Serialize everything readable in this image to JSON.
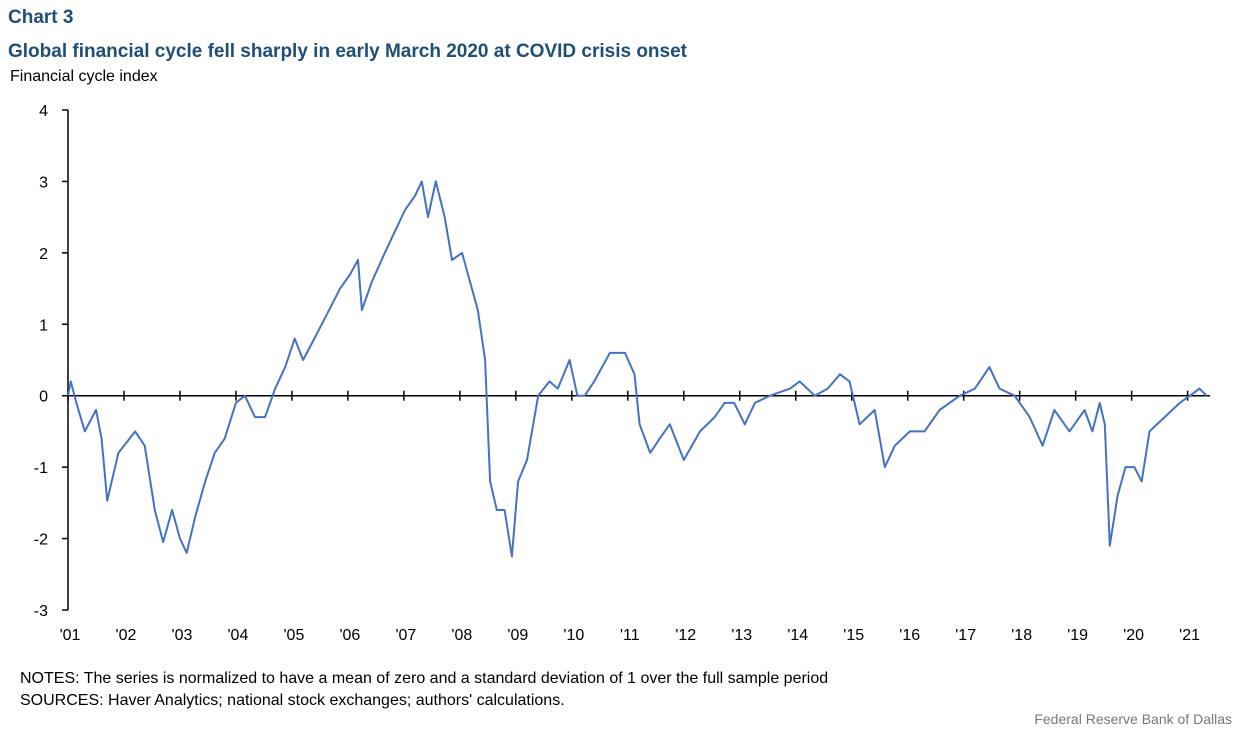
{
  "chart_data": {
    "type": "line",
    "title": "Chart 3",
    "subtitle": "Global financial cycle fell sharply in early March 2020 at COVID crisis onset",
    "y_label": "Financial  cycle index",
    "notes": "NOTES: The series is normalized  to have a mean  of zero and a standard deviation of 1 over the full sample period",
    "sources": "SOURCES: Haver Analytics; national stock exchanges; authors' calculations.",
    "credit": "Federal Reserve  Bank of Dallas",
    "color": "#4472c4",
    "x": [
      2001.0,
      2001.05,
      2001.15,
      2001.3,
      2001.5,
      2001.6,
      2001.7,
      2001.9,
      2002.2,
      2002.37,
      2002.55,
      2002.7,
      2002.86,
      2003.0,
      2003.12,
      2003.27,
      2003.45,
      2003.62,
      2003.8,
      2004.0,
      2004.16,
      2004.34,
      2004.52,
      2004.7,
      2004.88,
      2005.05,
      2005.2,
      2005.4,
      2005.6,
      2005.86,
      2006.04,
      2006.18,
      2006.25,
      2006.43,
      2006.66,
      2006.84,
      2007.02,
      2007.2,
      2007.32,
      2007.43,
      2007.57,
      2007.73,
      2007.86,
      2008.04,
      2008.18,
      2008.32,
      2008.45,
      2008.54,
      2008.66,
      2008.8,
      2008.93,
      2009.04,
      2009.2,
      2009.4,
      2009.6,
      2009.75,
      2009.96,
      2010.1,
      2010.23,
      2010.4,
      2010.68,
      2010.95,
      2011.12,
      2011.21,
      2011.4,
      2011.57,
      2011.75,
      2012.0,
      2012.29,
      2012.55,
      2012.73,
      2012.9,
      2013.09,
      2013.27,
      2013.54,
      2013.9,
      2014.07,
      2014.34,
      2014.57,
      2014.79,
      2014.96,
      2015.14,
      2015.41,
      2015.59,
      2015.77,
      2016.04,
      2016.3,
      2016.57,
      2016.93,
      2017.2,
      2017.46,
      2017.64,
      2017.91,
      2018.18,
      2018.41,
      2018.62,
      2018.89,
      2019.16,
      2019.3,
      2019.43,
      2019.52,
      2019.61,
      2019.75,
      2019.89,
      2020.05,
      2020.18,
      2020.32,
      2020.59,
      2020.86,
      2021.13,
      2021.21,
      2021.34
    ],
    "values": [
      0.0,
      0.2,
      -0.1,
      -0.5,
      -0.2,
      -0.6,
      -1.47,
      -0.8,
      -0.5,
      -0.7,
      -1.6,
      -2.05,
      -1.6,
      -2.0,
      -2.2,
      -1.7,
      -1.2,
      -0.8,
      -0.6,
      -0.1,
      0.0,
      -0.3,
      -0.3,
      0.1,
      0.4,
      0.8,
      0.5,
      0.8,
      1.1,
      1.5,
      1.7,
      1.9,
      1.2,
      1.6,
      2.0,
      2.3,
      2.6,
      2.8,
      3.0,
      2.5,
      3.0,
      2.5,
      1.9,
      2.0,
      1.6,
      1.2,
      0.5,
      -1.2,
      -1.6,
      -1.6,
      -2.25,
      -1.2,
      -0.9,
      0.0,
      0.2,
      0.1,
      0.5,
      0.0,
      0.0,
      0.2,
      0.6,
      0.6,
      0.3,
      -0.4,
      -0.8,
      -0.6,
      -0.4,
      -0.9,
      -0.5,
      -0.3,
      -0.1,
      -0.1,
      -0.4,
      -0.1,
      0.0,
      0.1,
      0.2,
      0.0,
      0.1,
      0.3,
      0.2,
      -0.4,
      -0.2,
      -1.0,
      -0.7,
      -0.5,
      -0.5,
      -0.2,
      0.0,
      0.1,
      0.4,
      0.1,
      0.0,
      -0.3,
      -0.7,
      -0.2,
      -0.5,
      -0.2,
      -0.5,
      -0.1,
      -0.4,
      -2.1,
      -1.4,
      -1.0,
      -1.0,
      -1.2,
      -0.5,
      -0.3,
      -0.1,
      0.05,
      0.1,
      0.0
    ],
    "xlim": [
      2001,
      2021.4
    ],
    "xticks": [
      {
        "value": 2001,
        "label": "'01"
      },
      {
        "value": 2002,
        "label": "'02"
      },
      {
        "value": 2003,
        "label": "'03"
      },
      {
        "value": 2004,
        "label": "'04"
      },
      {
        "value": 2005,
        "label": "'05"
      },
      {
        "value": 2006,
        "label": "'06"
      },
      {
        "value": 2007,
        "label": "'07"
      },
      {
        "value": 2008,
        "label": "'08"
      },
      {
        "value": 2009,
        "label": "'09"
      },
      {
        "value": 2010,
        "label": "'10"
      },
      {
        "value": 2011,
        "label": "'11"
      },
      {
        "value": 2012,
        "label": "'12"
      },
      {
        "value": 2013,
        "label": "'13"
      },
      {
        "value": 2014,
        "label": "'14"
      },
      {
        "value": 2015,
        "label": "'15"
      },
      {
        "value": 2016,
        "label": "'16"
      },
      {
        "value": 2017,
        "label": "'17"
      },
      {
        "value": 2018,
        "label": "'18"
      },
      {
        "value": 2019,
        "label": "'19"
      },
      {
        "value": 2020,
        "label": "'20"
      },
      {
        "value": 2021,
        "label": "'21"
      }
    ],
    "ylim": [
      -3,
      4
    ],
    "yticks": [
      4,
      3,
      2,
      1,
      0,
      -1,
      -2,
      -3
    ]
  }
}
